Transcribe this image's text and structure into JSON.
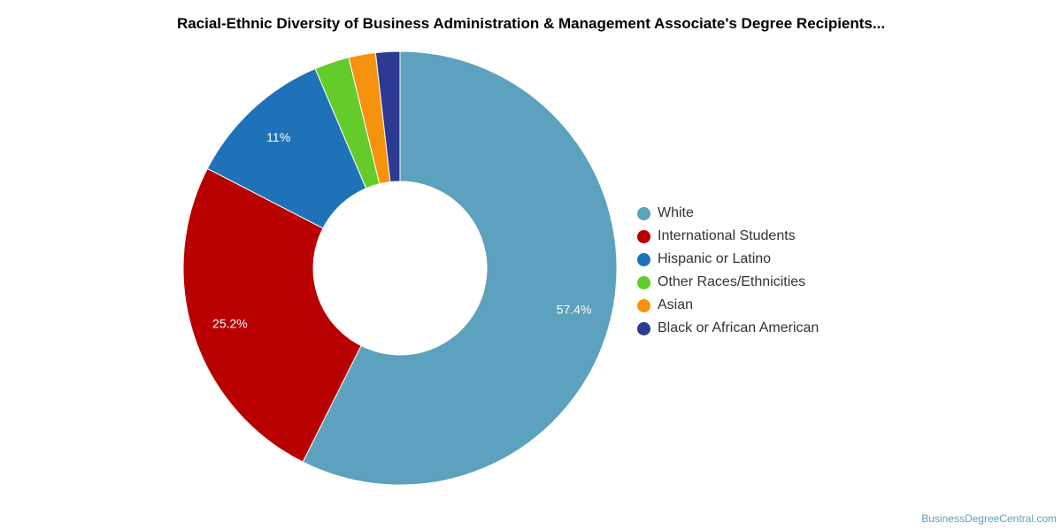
{
  "chart_data": {
    "type": "pie",
    "variant": "donut",
    "title": "Racial-Ethnic Diversity of Business Administration & Management Associate's Degree Recipients...",
    "legend_position": "right",
    "slices": [
      {
        "name": "White",
        "value": 57.4,
        "color": "#5ca1be",
        "label": "57.4%"
      },
      {
        "name": "International Students",
        "value": 25.2,
        "color": "#b80000",
        "label": "25.2%"
      },
      {
        "name": "Hispanic or Latino",
        "value": 11,
        "color": "#1f72b8",
        "label": "11%"
      },
      {
        "name": "Other Races/Ethnicities",
        "value": 2.6,
        "color": "#63cc2a",
        "label": ""
      },
      {
        "name": "Asian",
        "value": 2.0,
        "color": "#f7920f",
        "label": ""
      },
      {
        "name": "Black or African American",
        "value": 1.8,
        "color": "#2c3a92",
        "label": ""
      }
    ]
  },
  "watermark": "BusinessDegreeCentral.com"
}
